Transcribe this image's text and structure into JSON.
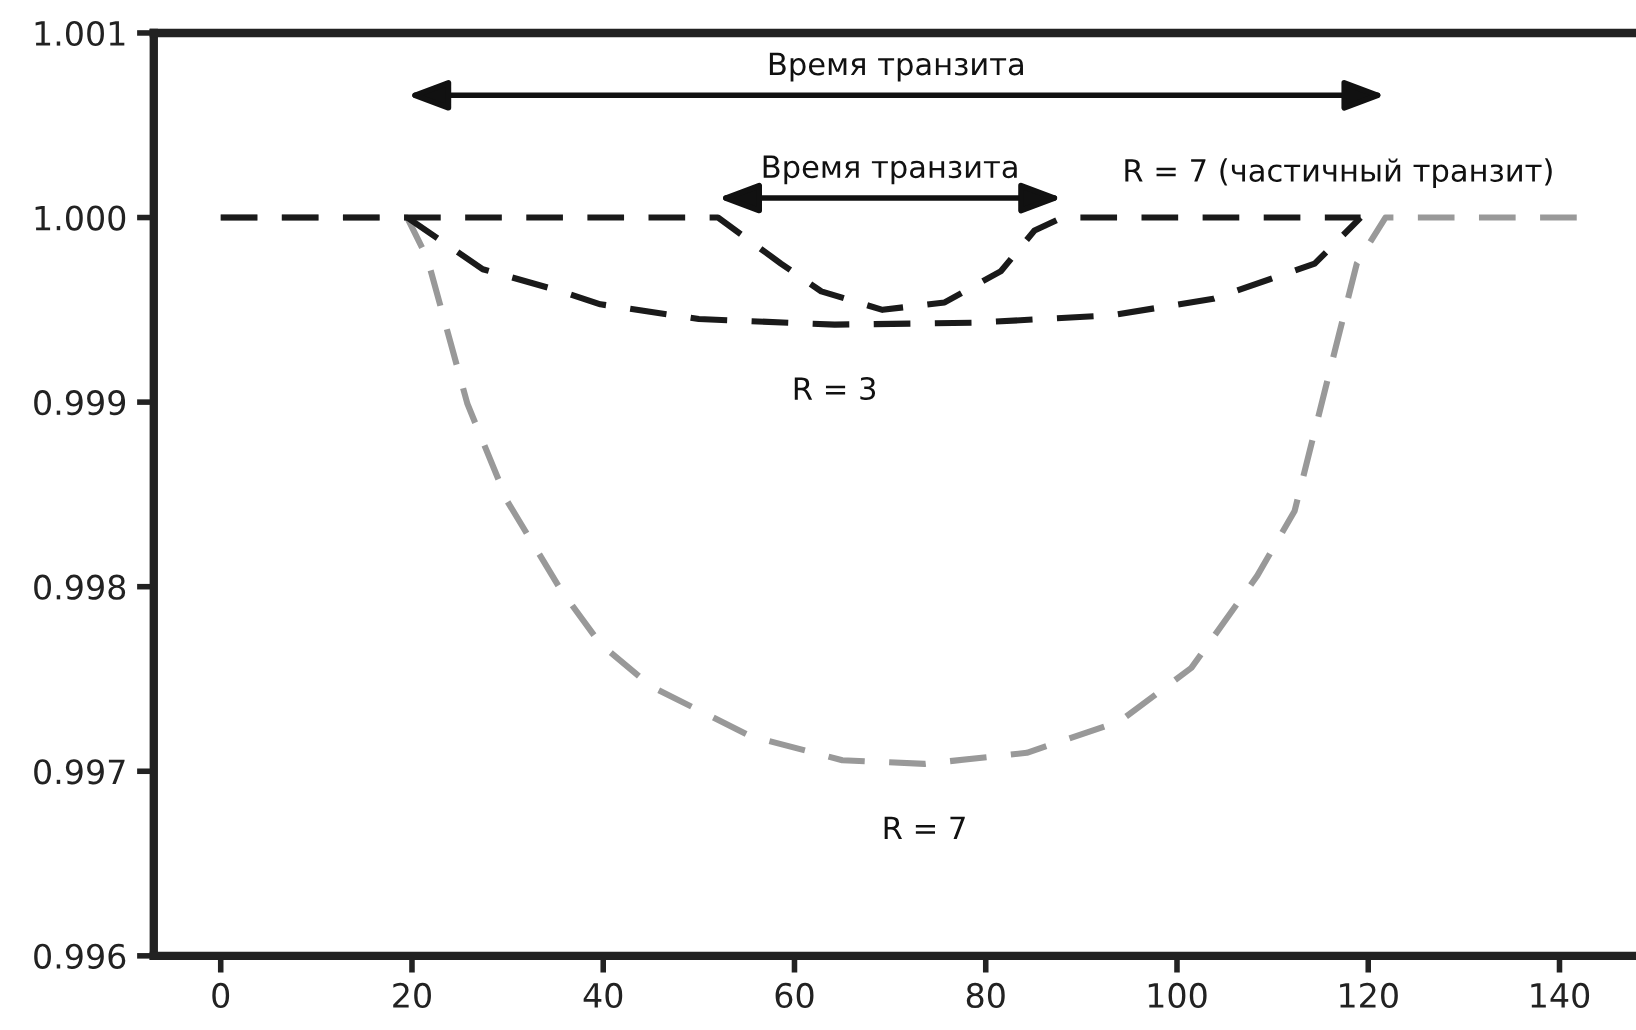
{
  "chart_data": {
    "type": "line",
    "xlim": [
      -7,
      148
    ],
    "ylim": [
      0.996,
      1.001
    ],
    "xticks": [
      0,
      20,
      40,
      60,
      80,
      100,
      120,
      140
    ],
    "yticks": [
      {
        "value": 0.996,
        "label": "0.996"
      },
      {
        "value": 0.997,
        "label": "0.997"
      },
      {
        "value": 0.998,
        "label": "0.998"
      },
      {
        "value": 0.999,
        "label": "0.999"
      },
      {
        "value": 1.0,
        "label": "1.000"
      },
      {
        "value": 1.001,
        "label": "1.001"
      }
    ],
    "grid": false,
    "marker": "none",
    "line_style": "dashed",
    "series": [
      {
        "name": "R = 7",
        "color": "#999999",
        "x": [
          0,
          19.5,
          21.6,
          25.8,
          30,
          35.6,
          39.7,
          45,
          55.4,
          65,
          73.6,
          84.3,
          94,
          101.5,
          108.4,
          112.3,
          118.8,
          121.8,
          142.5
        ],
        "values": [
          1.0,
          1.0,
          0.99978,
          0.99899,
          0.99846,
          0.99798,
          0.99769,
          0.99746,
          0.99719,
          0.99706,
          0.99704,
          0.9971,
          0.99727,
          0.99756,
          0.99806,
          0.99841,
          0.99975,
          1.0,
          1.0
        ]
      },
      {
        "name": "R = 3",
        "color": "#1a1a1a",
        "x": [
          19.5,
          27.4,
          35.6,
          39.7,
          50,
          64.2,
          78.7,
          93.1,
          103.8,
          114.4,
          119.2
        ],
        "values": [
          1.0,
          0.99972,
          0.9996,
          0.99953,
          0.99945,
          0.99942,
          0.99943,
          0.99947,
          0.99956,
          0.99975,
          1.0
        ]
      },
      {
        "name": "R = 7 (частичный транзит)",
        "color": "#1a1a1a",
        "x": [
          0,
          52,
          58.6,
          62.8,
          69.2,
          75.7,
          81.6,
          85.1,
          88,
          119.2
        ],
        "values": [
          1.0,
          1.0,
          0.99975,
          0.9996,
          0.9995,
          0.99954,
          0.99971,
          0.99993,
          1.0,
          1.0
        ]
      }
    ],
    "annotations": [
      "Время транзита",
      "Время транзита"
    ]
  }
}
